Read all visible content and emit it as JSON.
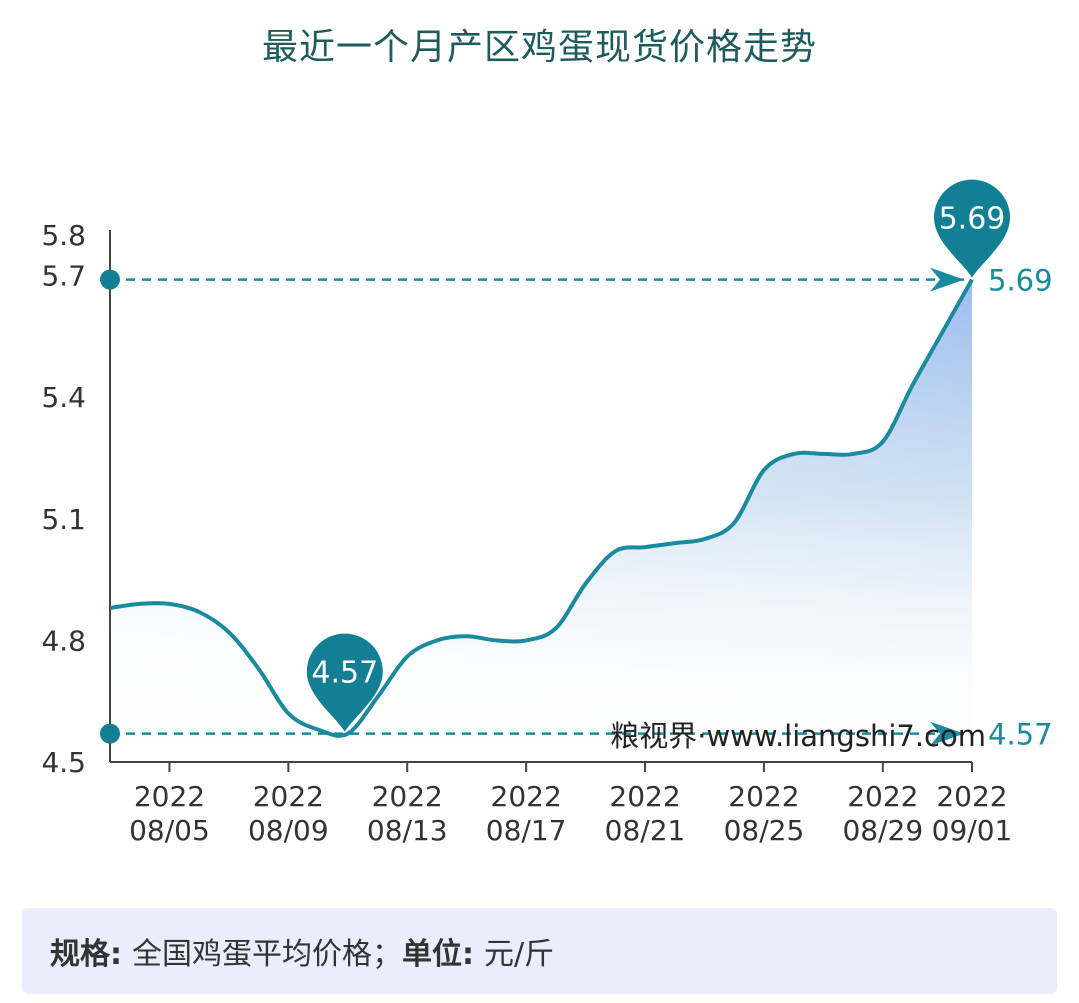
{
  "chart_data": {
    "type": "area",
    "title": "最近一个月产区鸡蛋现货价格走势",
    "y_ticks": [
      "5.8",
      "5.7",
      "5.4",
      "5.1",
      "4.8",
      "4.5"
    ],
    "ylim": [
      4.5,
      5.8
    ],
    "x_ticks": [
      {
        "year": "2022",
        "date": "08/05"
      },
      {
        "year": "2022",
        "date": "08/09"
      },
      {
        "year": "2022",
        "date": "08/13"
      },
      {
        "year": "2022",
        "date": "08/17"
      },
      {
        "year": "2022",
        "date": "08/21"
      },
      {
        "year": "2022",
        "date": "08/25"
      },
      {
        "year": "2022",
        "date": "08/29"
      },
      {
        "year": "2022",
        "date": "09/01"
      }
    ],
    "series": [
      {
        "x": [
          "08/03",
          "08/04",
          "08/05",
          "08/06",
          "08/07",
          "08/08",
          "08/09",
          "08/10",
          "08/11",
          "08/12",
          "08/13",
          "08/14",
          "08/15",
          "08/16",
          "08/17",
          "08/18",
          "08/19",
          "08/20",
          "08/21",
          "08/22",
          "08/23",
          "08/24",
          "08/25",
          "08/26",
          "08/27",
          "08/28",
          "08/29",
          "08/30",
          "08/31",
          "09/01"
        ],
        "values": [
          4.88,
          4.89,
          4.89,
          4.87,
          4.82,
          4.73,
          4.62,
          4.58,
          4.57,
          4.66,
          4.76,
          4.8,
          4.81,
          4.8,
          4.8,
          4.83,
          4.94,
          5.02,
          5.03,
          5.04,
          5.05,
          5.09,
          5.22,
          5.26,
          5.26,
          5.26,
          5.29,
          5.43,
          5.56,
          5.69
        ]
      }
    ],
    "max_marker": {
      "value": "5.69",
      "side_label": "5.69"
    },
    "min_marker": {
      "value": "4.57",
      "side_label": "4.57"
    },
    "grid": false
  },
  "watermark": "粮视界·www.liangshi7.com",
  "footer": {
    "spec_label": "规格:",
    "spec_value": "全国鸡蛋平均价格；",
    "unit_label": "单位:",
    "unit_value": "元/斤"
  },
  "colors": {
    "line": "#1a8a9e",
    "marker": "#127f94",
    "title": "#1e5b5c",
    "axis": "#444444"
  }
}
